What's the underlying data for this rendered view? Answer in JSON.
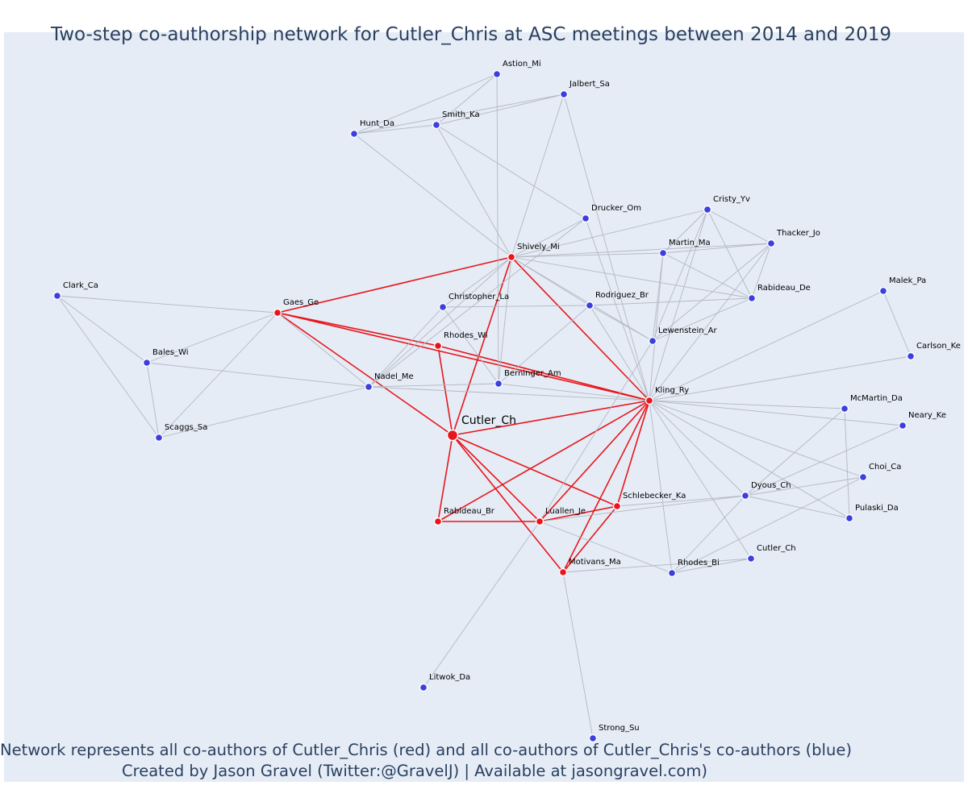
{
  "title": "Two-step co-authorship network for Cutler_Chris at ASC meetings between 2014 and 2019",
  "footer": {
    "line1": "Network represents all co-authors of Cutler_Chris (red) and all co-authors of Cutler_Chris's co-authors (blue)",
    "line2": "Created by Jason Gravel (Twitter:@GravelJ) | Available at jasongravel.com)"
  },
  "colors": {
    "first_degree": "#e8161b",
    "second_degree": "#3b3fe0",
    "first_degree_edge": "#e8161b",
    "second_degree_edge": "#b4b8c4",
    "background": "#e5ecf6",
    "text": "#2a3f5f"
  },
  "nodes": [
    {
      "id": "cutler",
      "label": "Cutler_Ch",
      "group": "ego"
    },
    {
      "id": "shively",
      "label": "Shively_Mi",
      "group": "red"
    },
    {
      "id": "gaes",
      "label": "Gaes_Ge",
      "group": "red"
    },
    {
      "id": "rhodesw",
      "label": "Rhodes_Wi",
      "group": "red"
    },
    {
      "id": "kling",
      "label": "Kling_Ry",
      "group": "red"
    },
    {
      "id": "rabideaub",
      "label": "Rabideau_Br",
      "group": "red"
    },
    {
      "id": "luallen",
      "label": "Luallen_Je",
      "group": "red"
    },
    {
      "id": "schlebecker",
      "label": "Schlebecker_Ka",
      "group": "red"
    },
    {
      "id": "motivans",
      "label": "Motivans_Ma",
      "group": "red"
    },
    {
      "id": "astion",
      "label": "Astion_Mi",
      "group": "blue"
    },
    {
      "id": "jalbert",
      "label": "Jalbert_Sa",
      "group": "blue"
    },
    {
      "id": "smith",
      "label": "Smith_Ka",
      "group": "blue"
    },
    {
      "id": "hunt",
      "label": "Hunt_Da",
      "group": "blue"
    },
    {
      "id": "drucker",
      "label": "Drucker_Om",
      "group": "blue"
    },
    {
      "id": "cristy",
      "label": "Cristy_Yv",
      "group": "blue"
    },
    {
      "id": "thacker",
      "label": "Thacker_Jo",
      "group": "blue"
    },
    {
      "id": "martin",
      "label": "Martin_Ma",
      "group": "blue"
    },
    {
      "id": "malek",
      "label": "Malek_Pa",
      "group": "blue"
    },
    {
      "id": "clark",
      "label": "Clark_Ca",
      "group": "blue"
    },
    {
      "id": "christopher",
      "label": "Christopher_La",
      "group": "blue"
    },
    {
      "id": "rodriguez",
      "label": "Rodriguez_Br",
      "group": "blue"
    },
    {
      "id": "rabideaud",
      "label": "Rabideau_De",
      "group": "blue"
    },
    {
      "id": "lewenstein",
      "label": "Lewenstein_Ar",
      "group": "blue"
    },
    {
      "id": "carlson",
      "label": "Carlson_Ke",
      "group": "blue"
    },
    {
      "id": "bales",
      "label": "Bales_Wi",
      "group": "blue"
    },
    {
      "id": "nadel",
      "label": "Nadel_Me",
      "group": "blue"
    },
    {
      "id": "berninger",
      "label": "Berninger_Am",
      "group": "blue"
    },
    {
      "id": "mcmartin",
      "label": "McMartin_Da",
      "group": "blue"
    },
    {
      "id": "neary",
      "label": "Neary_Ke",
      "group": "blue"
    },
    {
      "id": "scaggs",
      "label": "Scaggs_Sa",
      "group": "blue"
    },
    {
      "id": "choi",
      "label": "Choi_Ca",
      "group": "blue"
    },
    {
      "id": "dyous",
      "label": "Dyous_Ch",
      "group": "blue"
    },
    {
      "id": "pulaski",
      "label": "Pulaski_Da",
      "group": "blue"
    },
    {
      "id": "cutler2",
      "label": "Cutler_Ch",
      "group": "blue"
    },
    {
      "id": "rhodesb",
      "label": "Rhodes_Bi",
      "group": "blue"
    },
    {
      "id": "litwok",
      "label": "Litwok_Da",
      "group": "blue"
    },
    {
      "id": "strong",
      "label": "Strong_Su",
      "group": "blue"
    }
  ],
  "edges": [
    [
      "cutler",
      "shively"
    ],
    [
      "cutler",
      "gaes"
    ],
    [
      "cutler",
      "rhodesw"
    ],
    [
      "cutler",
      "kling"
    ],
    [
      "cutler",
      "rabideaub"
    ],
    [
      "cutler",
      "luallen"
    ],
    [
      "cutler",
      "schlebecker"
    ],
    [
      "cutler",
      "motivans"
    ],
    [
      "gaes",
      "shively"
    ],
    [
      "gaes",
      "rhodesw"
    ],
    [
      "gaes",
      "kling"
    ],
    [
      "shively",
      "kling"
    ],
    [
      "rhodesw",
      "kling"
    ],
    [
      "rabideaub",
      "luallen"
    ],
    [
      "rabideaub",
      "kling"
    ],
    [
      "luallen",
      "kling"
    ],
    [
      "luallen",
      "schlebecker"
    ],
    [
      "schlebecker",
      "kling"
    ],
    [
      "motivans",
      "kling"
    ],
    [
      "motivans",
      "schlebecker"
    ],
    [
      "astion",
      "smith"
    ],
    [
      "astion",
      "hunt"
    ],
    [
      "astion",
      "berninger"
    ],
    [
      "jalbert",
      "smith"
    ],
    [
      "jalbert",
      "hunt"
    ],
    [
      "jalbert",
      "shively"
    ],
    [
      "jalbert",
      "kling"
    ],
    [
      "hunt",
      "smith"
    ],
    [
      "hunt",
      "shively"
    ],
    [
      "smith",
      "shively"
    ],
    [
      "smith",
      "drucker"
    ],
    [
      "drucker",
      "shively"
    ],
    [
      "drucker",
      "nadel"
    ],
    [
      "drucker",
      "kling"
    ],
    [
      "shively",
      "cristy"
    ],
    [
      "shively",
      "thacker"
    ],
    [
      "shively",
      "martin"
    ],
    [
      "shively",
      "rabideaud"
    ],
    [
      "shively",
      "rodriguez"
    ],
    [
      "shively",
      "lewenstein"
    ],
    [
      "shively",
      "nadel"
    ],
    [
      "shively",
      "berninger"
    ],
    [
      "shively",
      "christopher"
    ],
    [
      "cristy",
      "martin"
    ],
    [
      "cristy",
      "thacker"
    ],
    [
      "cristy",
      "rabideaud"
    ],
    [
      "cristy",
      "lewenstein"
    ],
    [
      "cristy",
      "kling"
    ],
    [
      "thacker",
      "martin"
    ],
    [
      "thacker",
      "rabideaud"
    ],
    [
      "thacker",
      "lewenstein"
    ],
    [
      "thacker",
      "kling"
    ],
    [
      "martin",
      "rabideaud"
    ],
    [
      "martin",
      "lewenstein"
    ],
    [
      "martin",
      "kling"
    ],
    [
      "rabideaud",
      "lewenstein"
    ],
    [
      "malek",
      "carlson"
    ],
    [
      "malek",
      "kling"
    ],
    [
      "carlson",
      "kling"
    ],
    [
      "clark",
      "gaes"
    ],
    [
      "clark",
      "bales"
    ],
    [
      "clark",
      "scaggs"
    ],
    [
      "bales",
      "gaes"
    ],
    [
      "bales",
      "scaggs"
    ],
    [
      "bales",
      "nadel"
    ],
    [
      "scaggs",
      "gaes"
    ],
    [
      "scaggs",
      "nadel"
    ],
    [
      "gaes",
      "nadel"
    ],
    [
      "christopher",
      "rodriguez"
    ],
    [
      "christopher",
      "nadel"
    ],
    [
      "christopher",
      "berninger"
    ],
    [
      "rodriguez",
      "berninger"
    ],
    [
      "rodriguez",
      "lewenstein"
    ],
    [
      "rodriguez",
      "kling"
    ],
    [
      "rodriguez",
      "rabideaud"
    ],
    [
      "lewenstein",
      "luallen"
    ],
    [
      "nadel",
      "kling"
    ],
    [
      "nadel",
      "berninger"
    ],
    [
      "berninger",
      "kling"
    ],
    [
      "kling",
      "mcmartin"
    ],
    [
      "kling",
      "neary"
    ],
    [
      "kling",
      "choi"
    ],
    [
      "kling",
      "dyous"
    ],
    [
      "kling",
      "pulaski"
    ],
    [
      "kling",
      "cutler2"
    ],
    [
      "kling",
      "rhodesb"
    ],
    [
      "mcmartin",
      "pulaski"
    ],
    [
      "mcmartin",
      "dyous"
    ],
    [
      "neary",
      "dyous"
    ],
    [
      "choi",
      "dyous"
    ],
    [
      "choi",
      "rhodesb"
    ],
    [
      "dyous",
      "pulaski"
    ],
    [
      "dyous",
      "luallen"
    ],
    [
      "dyous",
      "schlebecker"
    ],
    [
      "dyous",
      "rhodesb"
    ],
    [
      "cutler2",
      "motivans"
    ],
    [
      "cutler2",
      "rhodesb"
    ],
    [
      "rhodesb",
      "luallen"
    ],
    [
      "luallen",
      "litwok"
    ],
    [
      "motivans",
      "strong"
    ]
  ]
}
